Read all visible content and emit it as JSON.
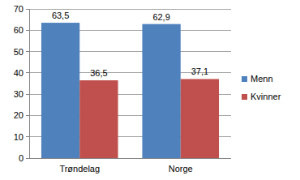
{
  "chart_data": {
    "type": "bar",
    "categories": [
      "Trøndelag",
      "Norge"
    ],
    "series": [
      {
        "name": "Menn",
        "color": "#4f81bd",
        "values": [
          63.5,
          62.9
        ],
        "value_labels": [
          "63,5",
          "62,9"
        ]
      },
      {
        "name": "Kvinner",
        "color": "#c0504d",
        "values": [
          36.5,
          37.1
        ],
        "value_labels": [
          "36,5",
          "37,1"
        ]
      }
    ],
    "ylim": [
      0,
      70
    ],
    "yticks": [
      0,
      10,
      20,
      30,
      40,
      50,
      60,
      70
    ],
    "grid": true,
    "legend": "right",
    "data_labels": true
  }
}
